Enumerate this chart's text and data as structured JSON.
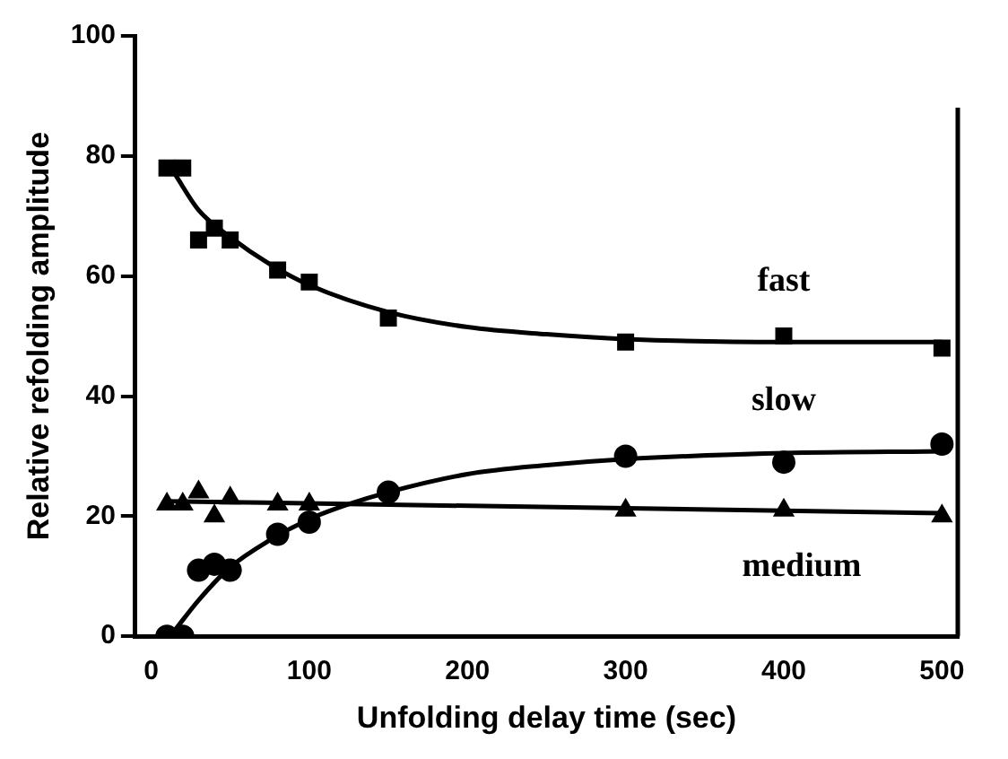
{
  "chart_data": {
    "type": "scatter",
    "xlabel": "Unfolding delay time (sec)",
    "ylabel": "Relative refolding amplitude",
    "xlim": [
      -10,
      510
    ],
    "xticks": [
      0,
      100,
      200,
      300,
      400,
      500
    ],
    "ylim": [
      0,
      100
    ],
    "yticks": [
      0,
      20,
      40,
      60,
      80,
      100
    ],
    "grid": false,
    "legend": false,
    "series": [
      {
        "name": "fast",
        "marker": "square",
        "color": "#000000",
        "x": [
          10,
          20,
          30,
          40,
          50,
          80,
          100,
          150,
          300,
          400,
          500
        ],
        "values": [
          78,
          78,
          66,
          68,
          66,
          61,
          59,
          53,
          49,
          50,
          48
        ]
      },
      {
        "name": "slow",
        "marker": "circle",
        "color": "#000000",
        "x": [
          10,
          20,
          30,
          40,
          50,
          80,
          100,
          150,
          300,
          400,
          500
        ],
        "values": [
          0,
          0,
          11,
          12,
          11,
          17,
          19,
          24,
          30,
          29,
          32
        ]
      },
      {
        "name": "medium",
        "marker": "triangle",
        "color": "#000000",
        "x": [
          10,
          20,
          30,
          40,
          50,
          80,
          100,
          150,
          300,
          400,
          500
        ],
        "values": [
          22,
          22,
          24,
          20,
          23,
          22,
          22,
          null,
          21,
          21,
          20
        ]
      },
      {
        "type": "line",
        "marker": "none",
        "color": "#000000",
        "x": [
          15,
          30,
          50,
          75,
          100,
          150,
          200,
          250,
          300,
          400,
          500
        ],
        "values": [
          77,
          71,
          66.5,
          62,
          58.5,
          54,
          51.5,
          50.3,
          49.5,
          49,
          49
        ]
      },
      {
        "type": "line",
        "marker": "none",
        "color": "#000000",
        "x": [
          15,
          30,
          50,
          75,
          100,
          125,
          150,
          200,
          250,
          300,
          400,
          500
        ],
        "values": [
          1,
          6,
          11.5,
          16,
          19.5,
          22,
          24,
          27,
          28.5,
          29.5,
          30.5,
          30.8
        ]
      },
      {
        "type": "line",
        "marker": "none",
        "color": "#000000",
        "x": [
          10,
          500
        ],
        "values": [
          22.5,
          20.5
        ]
      }
    ]
  }
}
